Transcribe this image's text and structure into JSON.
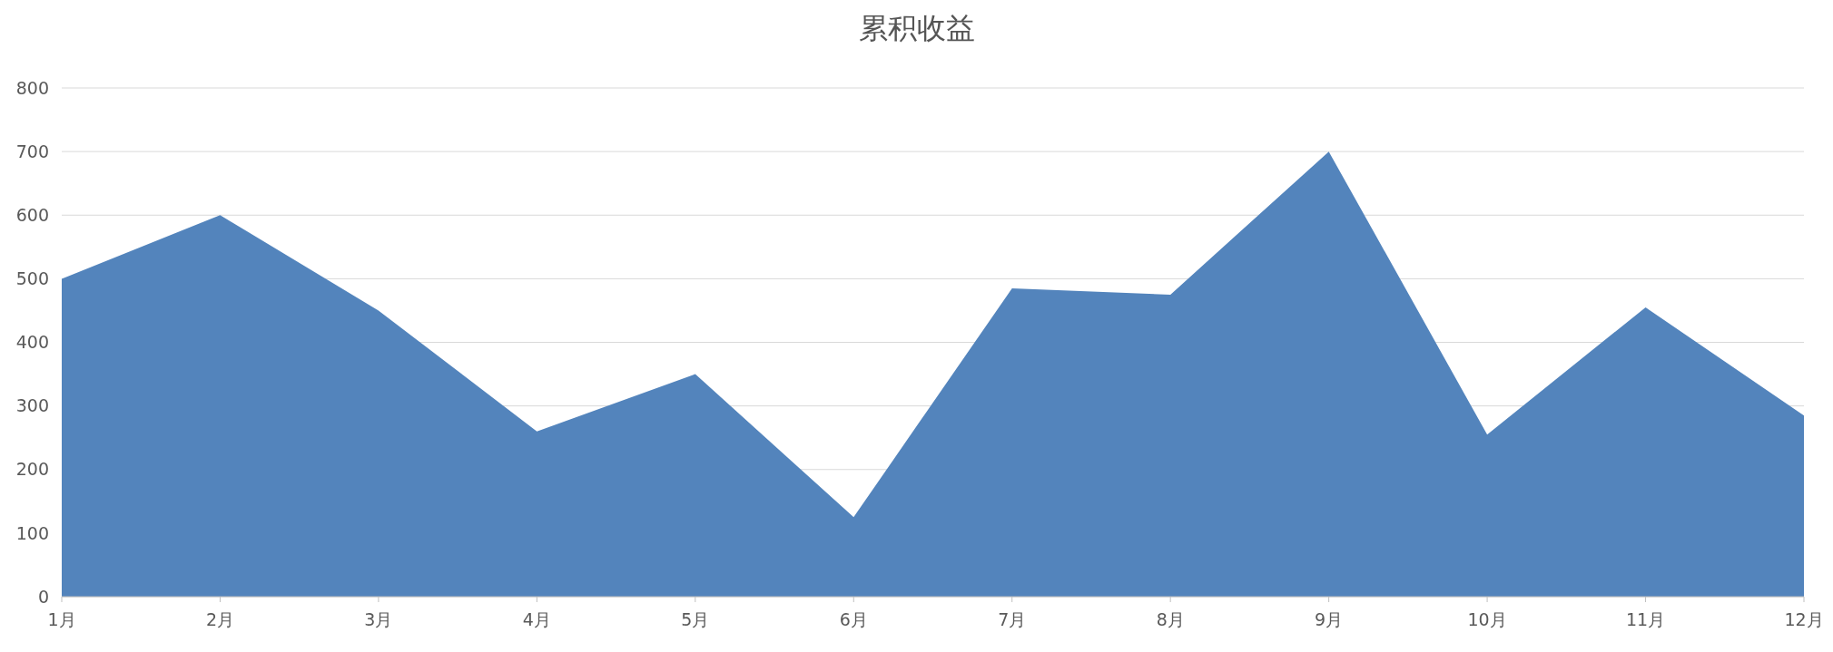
{
  "chart_data": {
    "type": "area",
    "title": "累积收益",
    "categories": [
      "1月",
      "2月",
      "3月",
      "4月",
      "5月",
      "6月",
      "7月",
      "8月",
      "9月",
      "10月",
      "11月",
      "12月"
    ],
    "values": [
      500,
      600,
      450,
      260,
      350,
      125,
      485,
      475,
      700,
      255,
      455,
      285
    ],
    "color": "#5384bc",
    "ylim": [
      0,
      800
    ],
    "yticks": [
      0,
      100,
      200,
      300,
      400,
      500,
      600,
      700,
      800
    ],
    "grid": "y"
  }
}
